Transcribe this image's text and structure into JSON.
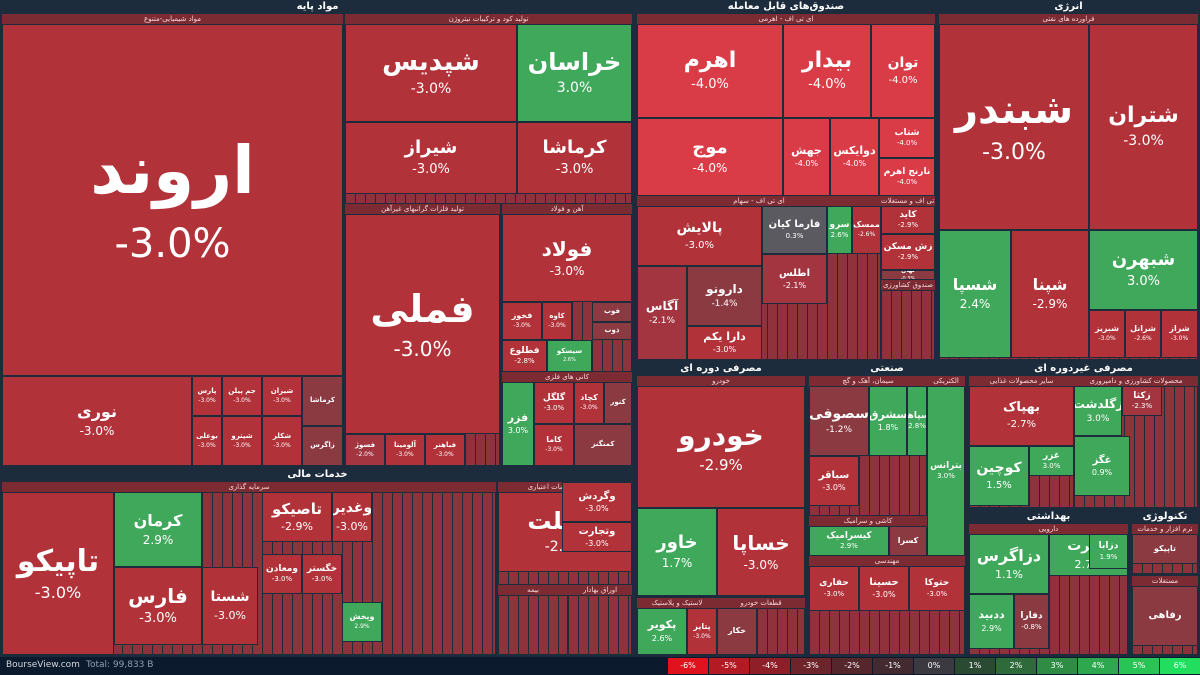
{
  "footer": {
    "brand": "BourseView.com",
    "total": "Total: 99,833 B"
  },
  "colors": {
    "red_dark": "#b2323a",
    "red_mid": "#a33540",
    "red_bright": "#d93c46",
    "red_muted": "#8c3a42",
    "green": "#3fa85a",
    "green_bright": "#2fbf55",
    "gray": "#5a5a60",
    "background": "#1c2c3c"
  },
  "legend": [
    {
      "label": "-6%",
      "color": "#e0121e"
    },
    {
      "label": "-5%",
      "color": "#b31a24"
    },
    {
      "label": "-4%",
      "color": "#8e1f28"
    },
    {
      "label": "-3%",
      "color": "#6e242b"
    },
    {
      "label": "-2%",
      "color": "#55262c"
    },
    {
      "label": "-1%",
      "color": "#432a30"
    },
    {
      "label": "0%",
      "color": "#3a3a40"
    },
    {
      "label": "1%",
      "color": "#2b4a32"
    },
    {
      "label": "2%",
      "color": "#2f6b3a"
    },
    {
      "label": "3%",
      "color": "#2f8c45"
    },
    {
      "label": "4%",
      "color": "#2da84e"
    },
    {
      "label": "5%",
      "color": "#28c556"
    },
    {
      "label": "6%",
      "color": "#22dd5e"
    }
  ],
  "chart_data": {
    "type": "treemap",
    "sectors": [
      {
        "name": "مواد پایه",
        "industries": [
          {
            "name": "مواد شیمیایی-متنوع",
            "stocks": [
              {
                "name": "اروند",
                "change": "-3.0%"
              },
              {
                "name": "نوری",
                "change": "-3.0%"
              },
              {
                "name": "پارس",
                "change": "-3.0%"
              },
              {
                "name": "بوعلی",
                "change": "-3.0%"
              },
              {
                "name": "جم پیلن",
                "change": "-3.0%"
              },
              {
                "name": "شپترو",
                "change": "-3.0%"
              },
              {
                "name": "شیران",
                "change": "-3.0%"
              },
              {
                "name": "شکلر",
                "change": "-3.0%"
              },
              {
                "name": "کرماشا",
                "change": ""
              },
              {
                "name": "زاگرس",
                "change": ""
              }
            ]
          },
          {
            "name": "تولید کود و ترکیبات نیتروژن",
            "stocks": [
              {
                "name": "شپدیس",
                "change": "-3.0%"
              },
              {
                "name": "خراسان",
                "change": "3.0%"
              },
              {
                "name": "شیراز",
                "change": "-3.0%"
              },
              {
                "name": "کرماشا",
                "change": "-3.0%"
              }
            ]
          },
          {
            "name": "تولید فلزات گرانبهای غیرآهن",
            "stocks": [
              {
                "name": "فملی",
                "change": "-3.0%"
              },
              {
                "name": "فسوژ",
                "change": "-2.0%"
              },
              {
                "name": "آلومینا",
                "change": "-3.0%"
              },
              {
                "name": "فباهنر",
                "change": "-3.0%"
              }
            ]
          },
          {
            "name": "آهن و فولاد",
            "stocks": [
              {
                "name": "فولاد",
                "change": "-3.0%"
              },
              {
                "name": "فخوز",
                "change": "-3.0%"
              },
              {
                "name": "کاوه",
                "change": "-3.0%"
              },
              {
                "name": "فوب",
                "change": ""
              },
              {
                "name": "ذوب",
                "change": ""
              },
              {
                "name": "فطلوع",
                "change": "-2.8%"
              },
              {
                "name": "سیسکو",
                "change": "2.6%"
              }
            ]
          },
          {
            "name": "کانی های فلزی",
            "stocks": [
              {
                "name": "فزر",
                "change": "3.0%"
              },
              {
                "name": "گلگل",
                "change": "-3.0%"
              },
              {
                "name": "کچاد",
                "change": "-3.0%"
              },
              {
                "name": "کنور",
                "change": ""
              },
              {
                "name": "کاما",
                "change": "-3.0%"
              },
              {
                "name": "کمنگنز",
                "change": ""
              }
            ]
          }
        ]
      },
      {
        "name": "صندوق‌های قابل معامله",
        "industries": [
          {
            "name": "ای تی اف - اهرمی",
            "stocks": [
              {
                "name": "اهرم",
                "change": "-4.0%"
              },
              {
                "name": "بیدار",
                "change": "-4.0%"
              },
              {
                "name": "توان",
                "change": "-4.0%"
              },
              {
                "name": "موج",
                "change": "-4.0%"
              },
              {
                "name": "جهش",
                "change": "-4.0%"
              },
              {
                "name": "دوایکس",
                "change": "-4.0%"
              },
              {
                "name": "شتاب",
                "change": "-4.0%"
              },
              {
                "name": "نارنج اهرم",
                "change": "-4.0%"
              }
            ]
          },
          {
            "name": "ای تی اف - سهام",
            "stocks": [
              {
                "name": "پالایش",
                "change": "-3.0%"
              },
              {
                "name": "فارما کیان",
                "change": "0.3%"
              },
              {
                "name": "سرو",
                "change": "2.6%"
              },
              {
                "name": "ممسک",
                "change": "-2.6%"
              },
              {
                "name": "اطلس",
                "change": "-2.1%"
              },
              {
                "name": "آگاس",
                "change": "-2.1%"
              },
              {
                "name": "دارونو",
                "change": "-1.4%"
              },
              {
                "name": "دارا یکم",
                "change": "-3.0%"
              }
            ]
          },
          {
            "name": "ای تی اف و مستغلات",
            "stocks": [
              {
                "name": "کاید",
                "change": "-2.9%"
              },
              {
                "name": "زش مسکن",
                "change": "-2.9%"
              },
              {
                "name": "نهال",
                "change": "-0.3%"
              }
            ]
          },
          {
            "name": "صندوق کشاورزی",
            "stocks": []
          }
        ]
      },
      {
        "name": "انرژی",
        "industries": [
          {
            "name": "فراورده های نفتی",
            "stocks": [
              {
                "name": "شبندر",
                "change": "-3.0%"
              },
              {
                "name": "شتران",
                "change": "-3.0%"
              },
              {
                "name": "شبهرن",
                "change": "3.0%"
              },
              {
                "name": "شسپا",
                "change": "2.4%"
              },
              {
                "name": "شپنا",
                "change": "-2.9%"
              },
              {
                "name": "شبریز",
                "change": "-3.0%"
              },
              {
                "name": "شرانل",
                "change": "-2.6%"
              },
              {
                "name": "شراز",
                "change": "-3.0%"
              }
            ]
          }
        ]
      },
      {
        "name": "خدمات مالی",
        "industries": [
          {
            "name": "سرمایه گذاری",
            "stocks": [
              {
                "name": "تاپیکو",
                "change": "-3.0%"
              },
              {
                "name": "فارس",
                "change": "-3.0%"
              },
              {
                "name": "کرمان",
                "change": "2.9%"
              },
              {
                "name": "شستا",
                "change": "-3.0%"
              },
              {
                "name": "تاصیکو",
                "change": "-2.9%"
              },
              {
                "name": "وغدیر",
                "change": "-3.0%"
              },
              {
                "name": "ومعادن",
                "change": "-3.0%"
              },
              {
                "name": "خگستر",
                "change": "-3.0%"
              },
              {
                "name": "وپخش",
                "change": "2.9%"
              }
            ]
          },
          {
            "name": "بانکها و موسسات اعتباری",
            "stocks": [
              {
                "name": "وبملت",
                "change": "-2.9%"
              },
              {
                "name": "وگردش",
                "change": "-3.0%"
              },
              {
                "name": "وتجارت",
                "change": "-3.0%"
              }
            ]
          },
          {
            "name": "بیمه",
            "stocks": []
          },
          {
            "name": "اوراق بهادار",
            "stocks": []
          }
        ]
      },
      {
        "name": "مصرفی دوره ای",
        "industries": [
          {
            "name": "خودرو",
            "stocks": [
              {
                "name": "خودرو",
                "change": "-2.9%"
              },
              {
                "name": "خاور",
                "change": "1.7%"
              },
              {
                "name": "خساپا",
                "change": "-3.0%"
              }
            ]
          },
          {
            "name": "لاستیک و پلاستیک",
            "stocks": [
              {
                "name": "پکویر",
                "change": "2.6%"
              },
              {
                "name": "پتایر",
                "change": "-3.0%"
              }
            ]
          },
          {
            "name": "قطعات خودرو",
            "stocks": [
              {
                "name": "خکار",
                "change": ""
              }
            ]
          }
        ]
      },
      {
        "name": "صنعتی",
        "industries": [
          {
            "name": "سیمان، آهک و گچ",
            "stocks": [
              {
                "name": "سصوفی",
                "change": "-1.2%"
              },
              {
                "name": "سشرق",
                "change": "1.8%"
              },
              {
                "name": "سپاها",
                "change": "2.8%"
              },
              {
                "name": "سباقر",
                "change": "-3.0%"
              }
            ]
          },
          {
            "name": "کاشی و سرامیک",
            "stocks": [
              {
                "name": "کیسرامیک",
                "change": "2.9%"
              },
              {
                "name": "کسرا",
                "change": ""
              }
            ]
          },
          {
            "name": "الکتریکی",
            "stocks": [
              {
                "name": "بترانس",
                "change": "3.0%"
              },
              {
                "name": "تکشا",
                "change": "-3.0%"
              }
            ]
          },
          {
            "name": "مهندسی",
            "stocks": [
              {
                "name": "حفاری",
                "change": "-3.0%"
              },
              {
                "name": "حسینا",
                "change": "-3.0%"
              },
              {
                "name": "حتوکا",
                "change": "-3.0%"
              }
            ]
          }
        ]
      },
      {
        "name": "مصرفی غیردوره ای",
        "industries": [
          {
            "name": "سایر محصولات غذایی",
            "stocks": [
              {
                "name": "بهپاک",
                "change": "-2.7%"
              },
              {
                "name": "کوچین",
                "change": "1.5%"
              },
              {
                "name": "غزر",
                "change": "3.0%"
              }
            ]
          },
          {
            "name": "محصولات کشاورزی و دامپروری",
            "stocks": [
              {
                "name": "زگلدشت",
                "change": "3.0%"
              },
              {
                "name": "زکثا",
                "change": "-2.3%"
              },
              {
                "name": "غگز",
                "change": "0.9%"
              }
            ]
          }
        ]
      },
      {
        "name": "بهداشتی",
        "industries": [
          {
            "name": "دارویی",
            "stocks": [
              {
                "name": "دزاگرس",
                "change": "1.1%"
              },
              {
                "name": "هجرت",
                "change": "2.7%"
              },
              {
                "name": "ددبید",
                "change": "2.9%"
              },
              {
                "name": "دفارا",
                "change": "-0.8%"
              },
              {
                "name": "دزابا",
                "change": "1.9%"
              }
            ]
          }
        ]
      },
      {
        "name": "تکنولوژی",
        "industries": [
          {
            "name": "نرم افزار و خدمات",
            "stocks": [
              {
                "name": "تاپیکو",
                "change": ""
              }
            ]
          },
          {
            "name": "مستغلات",
            "stocks": [
              {
                "name": "رفاهی",
                "change": ""
              }
            ]
          }
        ]
      }
    ]
  }
}
